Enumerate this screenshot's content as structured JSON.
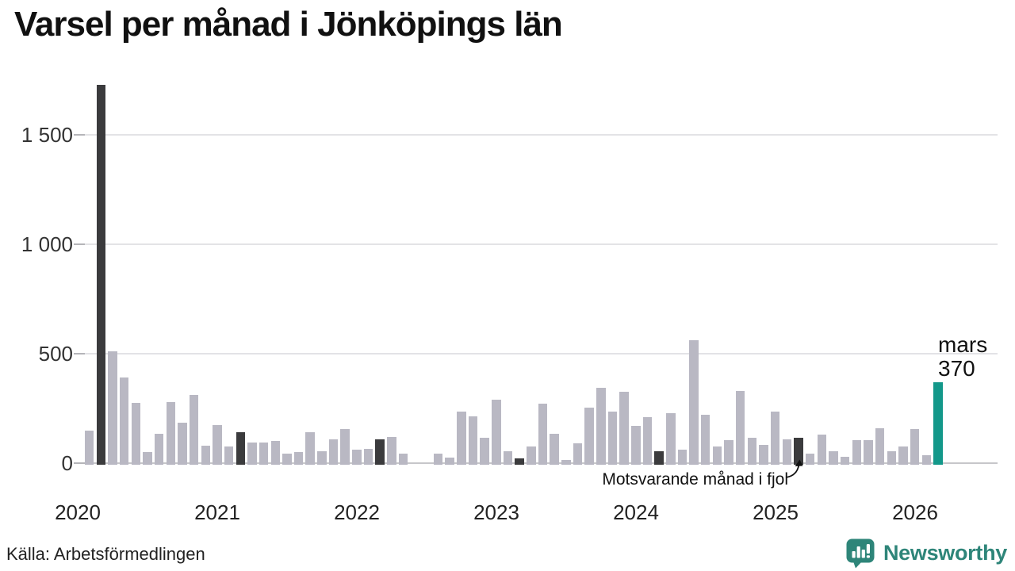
{
  "title": "Varsel per månad i Jönköpings län",
  "source": "Källa: Arbetsförmedlingen",
  "logo": {
    "text": "Newsworthy",
    "icon": "newsworthy-speech-bubble-chart-icon",
    "color": "#2e8579"
  },
  "annotation": {
    "text": "Motsvarande månad i fjol",
    "target_month": "2025-03"
  },
  "current_label": {
    "line1": "mars",
    "line2": "370"
  },
  "colors": {
    "bar_default": "#b9b8c3",
    "bar_march_prior": "#3b3b3d",
    "bar_current": "#13988a",
    "gridline": "#e3e3e6",
    "axis_line": "#c6c6ca",
    "tick": "#b5b5b9",
    "axis_text": "#333333",
    "title_text": "#111111"
  },
  "chart_data": {
    "type": "bar",
    "title": "Varsel per månad i Jönköpings län",
    "ylabel": "",
    "xlabel": "",
    "unit": "varsel per månad",
    "x_start_month": "2020-01",
    "x_end_month": "2026-03",
    "grid": "horizontal",
    "ylim": [
      0,
      1760
    ],
    "yticks": [
      0,
      500,
      1000,
      1500
    ],
    "ytick_labels": [
      "0",
      "500",
      "1 000",
      "1 500"
    ],
    "year_labels": [
      "2020",
      "2021",
      "2022",
      "2023",
      "2024",
      "2025",
      "2026"
    ],
    "values_by_year": {
      "2020": [
        0,
        150,
        1730,
        510,
        390,
        275,
        50,
        135,
        280,
        185,
        310,
        80
      ],
      "2021": [
        175,
        75,
        140,
        95,
        95,
        100,
        45,
        50,
        140,
        55,
        110,
        155
      ],
      "2022": [
        60,
        65,
        110,
        120,
        45,
        0,
        0,
        45,
        25,
        235,
        215,
        115
      ],
      "2023": [
        290,
        55,
        20,
        75,
        270,
        135,
        15,
        90,
        255,
        345,
        235,
        325
      ],
      "2024": [
        170,
        210,
        55,
        230,
        60,
        560,
        220,
        75,
        105,
        330,
        115,
        85
      ],
      "2025": [
        235,
        110,
        115,
        45,
        130,
        55,
        30,
        105,
        105,
        160,
        55,
        75
      ],
      "2026": [
        155,
        35,
        370
      ]
    },
    "highlight_dark_months": [
      "2020-03",
      "2021-03",
      "2022-03",
      "2023-03",
      "2024-03",
      "2025-03"
    ],
    "current_point": {
      "month": "2026-03",
      "label": "mars",
      "value": 370
    },
    "annotated_point": {
      "month": "2025-03",
      "annotation": "Motsvarande månad i fjol"
    },
    "legend": "none"
  }
}
